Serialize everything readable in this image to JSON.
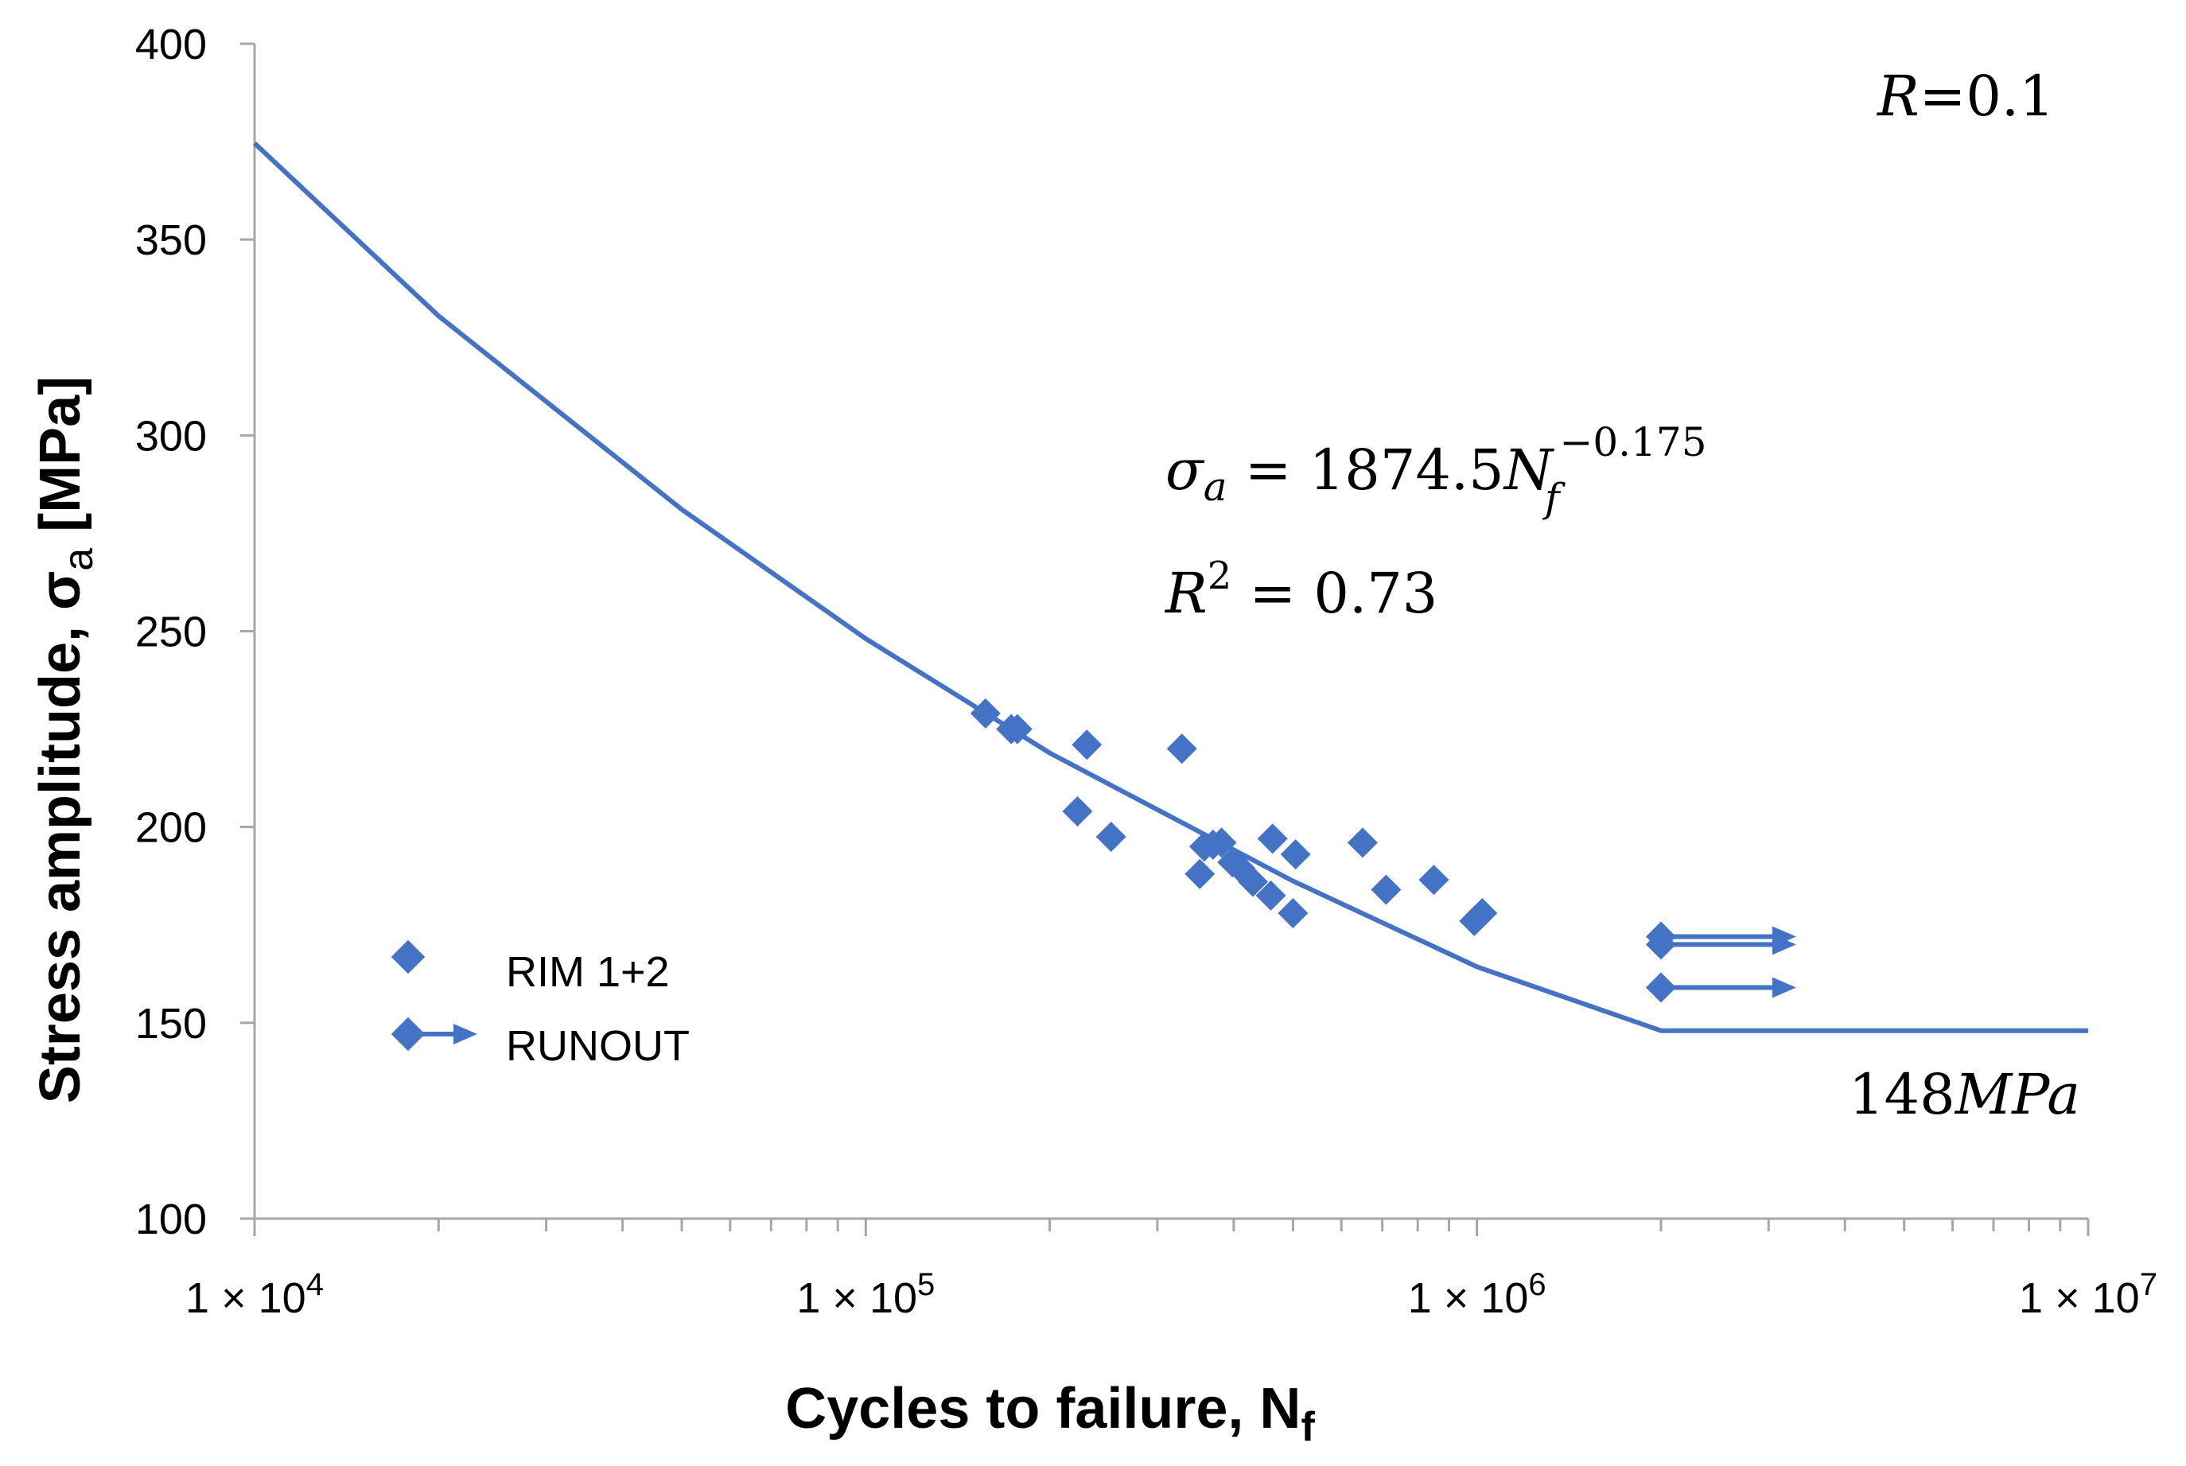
{
  "chart_data": {
    "type": "scatter",
    "xscale": "log",
    "xlim": [
      10000,
      10000000
    ],
    "ylim": [
      100,
      400
    ],
    "x_ticks": [
      {
        "value": 10000,
        "mantissa": "1 × 10",
        "exp": "4"
      },
      {
        "value": 100000,
        "mantissa": "1 × 10",
        "exp": "5"
      },
      {
        "value": 1000000,
        "mantissa": "1 × 10",
        "exp": "6"
      },
      {
        "value": 10000000,
        "mantissa": "1 × 10",
        "exp": "7"
      }
    ],
    "y_ticks": [
      100,
      150,
      200,
      250,
      300,
      350,
      400
    ],
    "xlabel": {
      "main": "Cycles to failure, N",
      "sub": "f"
    },
    "ylabel": {
      "main": "Stress amplitude, σ",
      "sub": "a",
      "unit": " [MPa]"
    },
    "grid": false,
    "legend_placement": "bottom-left",
    "colors": {
      "series": "#4472C4",
      "axis": "#a6a6a6"
    },
    "series": [
      {
        "name": "RIM 1+2",
        "marker": "diamond",
        "points": [
          [
            157000,
            229
          ],
          [
            173000,
            225
          ],
          [
            177000,
            225
          ],
          [
            230000,
            221
          ],
          [
            222000,
            204
          ],
          [
            252000,
            197.5
          ],
          [
            329000,
            220
          ],
          [
            352000,
            188
          ],
          [
            358000,
            195
          ],
          [
            370000,
            195.5
          ],
          [
            382000,
            196
          ],
          [
            398000,
            191
          ],
          [
            410000,
            189.5
          ],
          [
            430000,
            186
          ],
          [
            460000,
            182.5
          ],
          [
            463000,
            197
          ],
          [
            500000,
            178
          ],
          [
            505000,
            193
          ],
          [
            650000,
            196
          ],
          [
            710000,
            184
          ],
          [
            850000,
            186.5
          ],
          [
            990000,
            176
          ],
          [
            1020000,
            178
          ]
        ]
      },
      {
        "name": "RUNOUT",
        "marker": "diamond-arrow",
        "points": [
          [
            2000000,
            172
          ],
          [
            2000000,
            170
          ],
          [
            2000000,
            159
          ]
        ]
      },
      {
        "name": "fit",
        "type": "line",
        "points": [
          [
            10000,
            374.6
          ],
          [
            20000,
            330.5
          ],
          [
            50000,
            281.1
          ],
          [
            100000,
            248.1
          ],
          [
            200000,
            218.9
          ],
          [
            500000,
            186.2
          ],
          [
            1000000,
            164.3
          ],
          [
            2000000,
            148
          ],
          [
            10000000,
            148
          ]
        ]
      }
    ],
    "annotations": {
      "r_ratio": {
        "label": "R",
        "value": "=0.1"
      },
      "equation": {
        "lhs": "σ",
        "lhs_sub": "a",
        "mid": " = 1874.5",
        "var": "N",
        "var_sub": "f",
        "exp": "−0.175"
      },
      "r2": {
        "label": "R",
        "sup": "2",
        "value": " = 0.73"
      },
      "limit": {
        "value": "148",
        "unit": "MPa"
      }
    }
  }
}
